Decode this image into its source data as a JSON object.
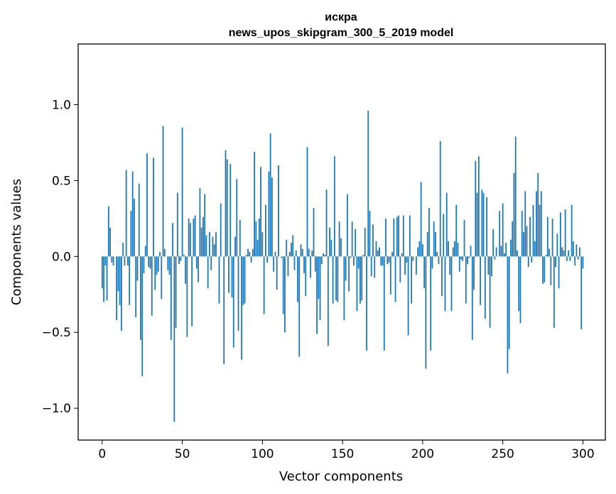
{
  "chart_data": {
    "type": "bar",
    "title": "искра",
    "subtitle": "news_upos_skipgram_300_5_2019 model",
    "xlabel": "Vector components",
    "ylabel": "Components values",
    "xlim": [
      -15,
      314
    ],
    "ylim": [
      -1.21,
      1.4
    ],
    "xticks": [
      0,
      50,
      100,
      150,
      200,
      250,
      300
    ],
    "yticks": [
      -1.0,
      -0.5,
      0.0,
      0.5,
      1.0
    ],
    "xtick_labels": [
      "0",
      "50",
      "100",
      "150",
      "200",
      "250",
      "300"
    ],
    "ytick_labels": [
      "−1.0",
      "−0.5",
      "0.0",
      "0.5",
      "1.0"
    ],
    "grid": false,
    "bar_color": "#1f77b4",
    "x_start": 0,
    "values": [
      -0.21,
      -0.3,
      -0.06,
      -0.29,
      0.33,
      0.19,
      -0.04,
      -0.06,
      0.0,
      -0.42,
      -0.23,
      -0.32,
      -0.49,
      0.09,
      -0.06,
      0.57,
      -0.06,
      -0.32,
      0.3,
      0.56,
      0.38,
      -0.4,
      -0.16,
      0.48,
      -0.55,
      -0.79,
      -0.11,
      0.07,
      0.68,
      -0.07,
      -0.08,
      -0.39,
      0.65,
      -0.22,
      -0.12,
      -0.1,
      0.03,
      -0.28,
      0.86,
      0.05,
      0.0,
      -0.09,
      -0.12,
      -0.55,
      0.22,
      -1.09,
      -0.47,
      0.42,
      -0.05,
      -0.03,
      0.85,
      0.01,
      -0.18,
      -0.53,
      0.25,
      0.22,
      -0.46,
      0.25,
      0.27,
      -0.08,
      -0.17,
      0.45,
      0.19,
      0.26,
      0.41,
      0.14,
      -0.21,
      0.16,
      -0.09,
      0.13,
      0.08,
      0.16,
      0.0,
      -0.31,
      0.35,
      0.0,
      -0.71,
      0.7,
      0.64,
      -0.24,
      0.61,
      -0.27,
      -0.6,
      0.13,
      0.51,
      -0.49,
      0.24,
      -0.68,
      -0.32,
      -0.31,
      0.01,
      0.05,
      0.03,
      -0.04,
      0.05,
      0.69,
      0.23,
      0.11,
      0.25,
      0.59,
      0.16,
      -0.38,
      0.34,
      -0.04,
      0.56,
      0.81,
      0.52,
      -0.1,
      0.03,
      -0.22,
      0.6,
      0.0,
      -0.01,
      -0.38,
      -0.5,
      0.11,
      -0.13,
      0.03,
      0.09,
      0.14,
      -0.09,
      0.04,
      -0.3,
      -0.66,
      0.08,
      0.05,
      -0.11,
      -0.26,
      0.72,
      0.05,
      -0.14,
      0.04,
      0.32,
      -0.1,
      -0.51,
      -0.28,
      -0.42,
      -0.05,
      0.02,
      0.01,
      0.44,
      -0.59,
      0.19,
      0.11,
      -0.31,
      0.66,
      -0.29,
      -0.3,
      0.23,
      0.12,
      0.0,
      -0.42,
      -0.16,
      0.41,
      -0.23,
      -0.01,
      0.23,
      -0.06,
      0.18,
      -0.36,
      -0.08,
      -0.31,
      -0.29,
      0.01,
      0.19,
      -0.62,
      0.96,
      0.3,
      -0.13,
      0.21,
      -0.14,
      0.1,
      0.04,
      0.06,
      -0.06,
      -0.06,
      -0.62,
      0.25,
      -0.05,
      -0.04,
      -0.25,
      0.03,
      0.25,
      -0.3,
      0.26,
      0.27,
      -0.17,
      0.02,
      0.27,
      -0.12,
      -0.04,
      -0.52,
      0.27,
      -0.31,
      -0.03,
      0.0,
      -0.12,
      0.06,
      0.1,
      0.49,
      0.08,
      -0.21,
      -0.74,
      0.16,
      0.32,
      -0.62,
      -0.08,
      0.23,
      0.16,
      0.03,
      -0.05,
      0.76,
      -0.26,
      0.28,
      -0.36,
      0.42,
      0.1,
      -0.12,
      -0.36,
      0.06,
      0.1,
      0.34,
      0.09,
      -0.1,
      -0.02,
      -0.03,
      0.24,
      -0.31,
      -0.05,
      -0.01,
      0.07,
      -0.55,
      -0.22,
      0.63,
      0.42,
      0.66,
      -0.32,
      0.44,
      0.42,
      -0.41,
      0.39,
      -0.12,
      -0.47,
      -0.13,
      0.18,
      -0.02,
      0.06,
      0.0,
      0.3,
      0.07,
      0.35,
      0.02,
      0.09,
      -0.77,
      -0.61,
      0.11,
      0.23,
      0.55,
      0.79,
      0.04,
      -0.36,
      -0.44,
      0.3,
      0.16,
      0.43,
      0.2,
      -0.07,
      0.26,
      -0.04,
      0.34,
      0.1,
      0.43,
      0.55,
      0.34,
      0.43,
      -0.18,
      -0.17,
      0.01,
      0.26,
      0.05,
      -0.19,
      0.25,
      -0.47,
      -0.07,
      0.15,
      -0.21,
      0.29,
      0.06,
      0.04,
      0.31,
      -0.03,
      0.04,
      -0.03,
      0.34,
      0.1,
      -0.06,
      0.08,
      -0.02,
      0.06,
      -0.48,
      -0.08
    ]
  }
}
